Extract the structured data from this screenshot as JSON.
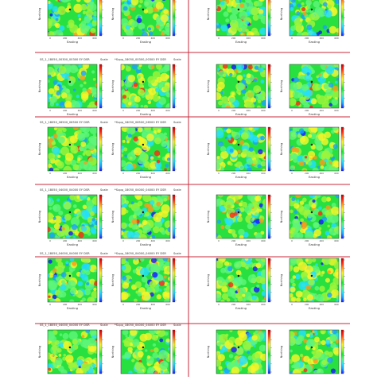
{
  "chart_data": {
    "type": "heatmap",
    "layout": {
      "rows": 6,
      "cols": 4
    },
    "xlabel": "Easting",
    "ylabel": "Northing",
    "colorbar_label": "Scale",
    "colormap": [
      "#1a1aff",
      "#19a2ff",
      "#22e0ff",
      "#5ef57a",
      "#13e62e",
      "#9ff43b",
      "#f7f52a",
      "#ff9a1c",
      "#ff2a14",
      "#c90000"
    ],
    "x_ticks": [
      "0",
      "200",
      "400",
      "600"
    ],
    "panel_labels": [
      [
        "",
        "",
        "",
        ""
      ],
      [
        "SS_1_18050_00300_00300 EY DSR",
        "*Supp_18050_00300_00300 EY DSR",
        "",
        ""
      ],
      [
        "SS_1_18050_06500_06500 EY DSR",
        "*Supp_18050_06500_06500 EY DSR",
        "",
        ""
      ],
      [
        "SS_1_18050_04000_04000 EY DSR",
        "*Supp_18050_04000_04000 EY DSR",
        "",
        ""
      ],
      [
        "SS_1_18050_04000_04000 EY DSR",
        "*Supp_18050_04000_04000 EY DSR",
        "",
        ""
      ],
      [
        "SS_1_18050_04000_04000 EY DSR",
        "*Supp_18050_04000_04000 EY DSR",
        "",
        ""
      ]
    ]
  },
  "colors": {
    "divider": "#cc2a3a",
    "frame": "#333333"
  }
}
